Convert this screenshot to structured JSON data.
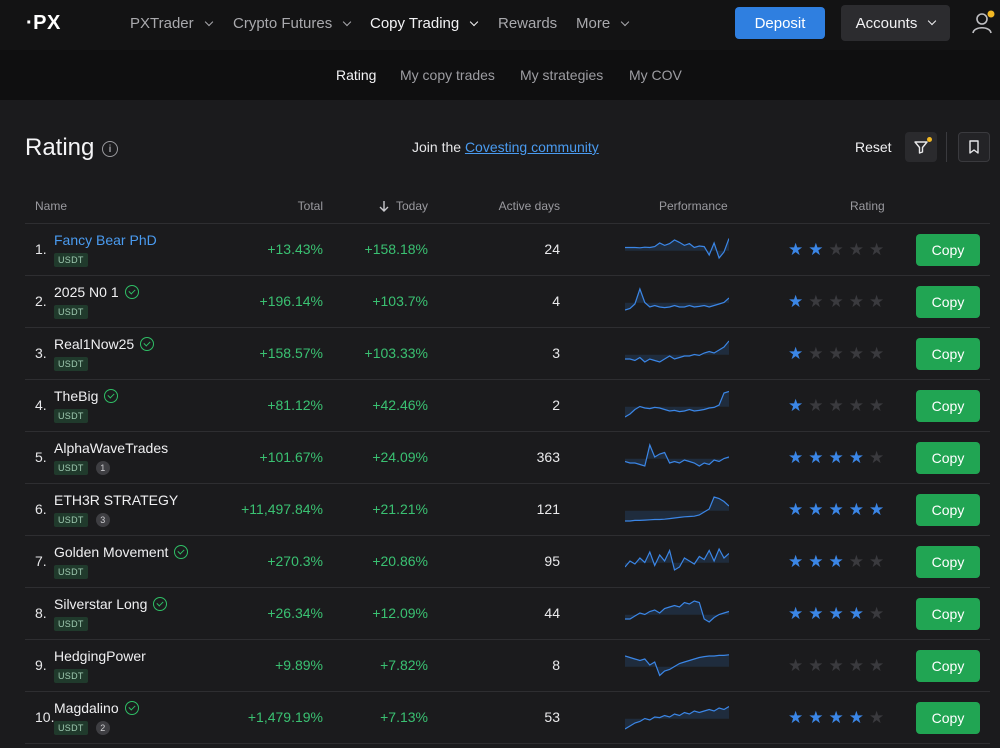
{
  "brand": {
    "logo": "·PX"
  },
  "nav": {
    "items": [
      {
        "label": "PXTrader",
        "chevron": true
      },
      {
        "label": "Crypto Futures",
        "chevron": true
      },
      {
        "label": "Copy Trading",
        "chevron": true,
        "active": true
      },
      {
        "label": "Rewards",
        "chevron": false
      },
      {
        "label": "More",
        "chevron": true
      }
    ],
    "deposit_label": "Deposit",
    "accounts_label": "Accounts"
  },
  "subnav": {
    "items": [
      {
        "label": "Rating",
        "active": true
      },
      {
        "label": "My copy trades"
      },
      {
        "label": "My strategies"
      },
      {
        "label": "My COV"
      }
    ]
  },
  "header": {
    "title": "Rating",
    "join_prefix": "Join the",
    "join_link": "Covesting community",
    "reset_label": "Reset"
  },
  "table": {
    "columns": {
      "name": "Name",
      "total": "Total",
      "today": "Today",
      "active_days": "Active days",
      "performance": "Performance",
      "rating": "Rating"
    },
    "copy_label": "Copy",
    "rows": [
      {
        "rank": "1.",
        "name": "Fancy Bear PhD",
        "verified": false,
        "tag": "USDT",
        "badge": "",
        "total": "+13.43%",
        "today": "+158.18%",
        "days": "24",
        "stars": 2,
        "perf": [
          0.55,
          0.55,
          0.55,
          0.54,
          0.56,
          0.55,
          0.58,
          0.7,
          0.62,
          0.68,
          0.8,
          0.72,
          0.62,
          0.68,
          0.55,
          0.6,
          0.58,
          0.3,
          0.7,
          0.2,
          0.4,
          0.85
        ]
      },
      {
        "rank": "2.",
        "name": "2025 N0 1",
        "verified": true,
        "tag": "USDT",
        "badge": "",
        "total": "+196.14%",
        "today": "+103.7%",
        "days": "4",
        "stars": 1,
        "perf": [
          0.2,
          0.25,
          0.4,
          0.9,
          0.45,
          0.3,
          0.35,
          0.3,
          0.28,
          0.3,
          0.35,
          0.3,
          0.3,
          0.35,
          0.3,
          0.32,
          0.35,
          0.3,
          0.35,
          0.4,
          0.45,
          0.6
        ]
      },
      {
        "rank": "3.",
        "name": "Real1Now25",
        "verified": true,
        "tag": "USDT",
        "badge": "",
        "total": "+158.57%",
        "today": "+103.33%",
        "days": "3",
        "stars": 1,
        "perf": [
          0.3,
          0.3,
          0.25,
          0.35,
          0.2,
          0.3,
          0.25,
          0.2,
          0.3,
          0.4,
          0.3,
          0.35,
          0.4,
          0.4,
          0.45,
          0.42,
          0.5,
          0.55,
          0.5,
          0.6,
          0.7,
          0.9
        ]
      },
      {
        "rank": "4.",
        "name": "TheBig",
        "verified": true,
        "tag": "USDT",
        "badge": "",
        "total": "+81.12%",
        "today": "+42.46%",
        "days": "2",
        "stars": 1,
        "perf": [
          0.1,
          0.2,
          0.35,
          0.45,
          0.4,
          0.38,
          0.42,
          0.4,
          0.35,
          0.3,
          0.32,
          0.28,
          0.3,
          0.35,
          0.3,
          0.32,
          0.35,
          0.4,
          0.42,
          0.5,
          0.9,
          0.95
        ]
      },
      {
        "rank": "5.",
        "name": "AlphaWaveTrades",
        "verified": false,
        "tag": "USDT",
        "badge": "1",
        "total": "+101.67%",
        "today": "+24.09%",
        "days": "363",
        "stars": 4,
        "perf": [
          0.35,
          0.3,
          0.3,
          0.25,
          0.2,
          0.9,
          0.5,
          0.6,
          0.65,
          0.3,
          0.35,
          0.3,
          0.4,
          0.35,
          0.3,
          0.2,
          0.3,
          0.25,
          0.4,
          0.35,
          0.45,
          0.5
        ]
      },
      {
        "rank": "6.",
        "name": "ETH3R STRATEGY",
        "verified": false,
        "tag": "USDT",
        "badge": "3",
        "total": "+11,497.84%",
        "today": "+21.21%",
        "days": "121",
        "stars": 5,
        "perf": [
          0.1,
          0.1,
          0.12,
          0.12,
          0.13,
          0.14,
          0.15,
          0.15,
          0.16,
          0.18,
          0.2,
          0.22,
          0.24,
          0.25,
          0.26,
          0.3,
          0.4,
          0.5,
          0.9,
          0.85,
          0.75,
          0.6
        ]
      },
      {
        "rank": "7.",
        "name": "Golden Movement",
        "verified": true,
        "tag": "USDT",
        "badge": "",
        "total": "+270.3%",
        "today": "+20.86%",
        "days": "95",
        "stars": 3,
        "perf": [
          0.3,
          0.5,
          0.4,
          0.6,
          0.45,
          0.8,
          0.35,
          0.7,
          0.5,
          0.85,
          0.2,
          0.3,
          0.6,
          0.5,
          0.4,
          0.65,
          0.55,
          0.85,
          0.5,
          0.9,
          0.6,
          0.75
        ]
      },
      {
        "rank": "8.",
        "name": "Silverstar Long",
        "verified": true,
        "tag": "USDT",
        "badge": "",
        "total": "+26.34%",
        "today": "+12.09%",
        "days": "44",
        "stars": 4,
        "perf": [
          0.3,
          0.3,
          0.4,
          0.5,
          0.45,
          0.55,
          0.6,
          0.5,
          0.65,
          0.7,
          0.75,
          0.7,
          0.85,
          0.8,
          0.9,
          0.85,
          0.3,
          0.2,
          0.35,
          0.45,
          0.5,
          0.55
        ]
      },
      {
        "rank": "9.",
        "name": "HedgingPower",
        "verified": false,
        "tag": "USDT",
        "badge": "",
        "total": "+9.89%",
        "today": "+7.82%",
        "days": "8",
        "stars": 0,
        "perf": [
          0.8,
          0.75,
          0.7,
          0.65,
          0.7,
          0.5,
          0.6,
          0.15,
          0.3,
          0.35,
          0.45,
          0.55,
          0.6,
          0.65,
          0.7,
          0.75,
          0.78,
          0.8,
          0.8,
          0.82,
          0.82,
          0.84
        ]
      },
      {
        "rank": "10.",
        "name": "Magdalino",
        "verified": true,
        "tag": "USDT",
        "badge": "2",
        "total": "+1,479.19%",
        "today": "+7.13%",
        "days": "53",
        "stars": 4,
        "perf": [
          0.1,
          0.2,
          0.3,
          0.35,
          0.45,
          0.4,
          0.5,
          0.48,
          0.55,
          0.5,
          0.6,
          0.55,
          0.65,
          0.6,
          0.7,
          0.65,
          0.7,
          0.75,
          0.7,
          0.8,
          0.75,
          0.85
        ]
      }
    ]
  },
  "colors": {
    "accent": "#2f7fe0",
    "positive": "#3ac172",
    "copy": "#21a553",
    "star_on": "#3b86e6",
    "spark": "#3b86e6"
  }
}
